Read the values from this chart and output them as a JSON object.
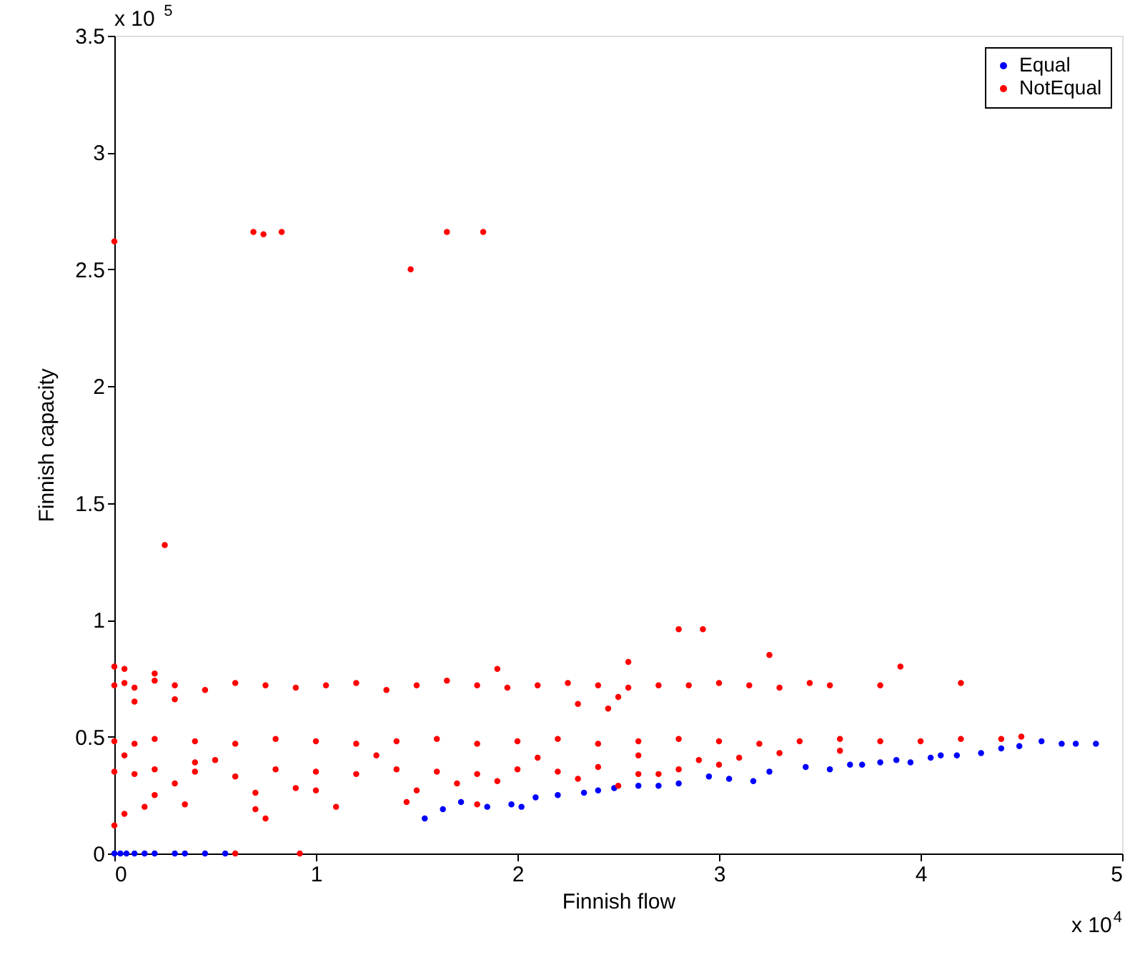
{
  "chart_data": {
    "type": "scatter",
    "xlabel": "Finnish flow",
    "ylabel": "Finnish capacity",
    "xlim": [
      0,
      5
    ],
    "ylim": [
      0,
      3.5
    ],
    "xticks": [
      0,
      1,
      2,
      3,
      4,
      5
    ],
    "yticks": [
      0,
      0.5,
      1,
      1.5,
      2,
      2.5,
      3,
      3.5
    ],
    "grid": false,
    "legend": "top right",
    "marker": "circle",
    "annotations": [
      "x 10$^{5}$",
      "x 10$^{4}$"
    ],
    "series": [
      {
        "name": "Equal",
        "color": "#0000ff",
        "x": [
          0,
          0.03,
          0.06,
          0.1,
          0.15,
          0.2,
          0.3,
          0.35,
          0.45,
          0.55,
          1.54,
          1.63,
          1.72,
          1.85,
          1.97,
          2.02,
          2.09,
          2.2,
          2.33,
          2.4,
          2.48,
          2.6,
          2.7,
          2.8,
          2.95,
          3.05,
          3.17,
          3.25,
          3.43,
          3.55,
          3.65,
          3.71,
          3.8,
          3.88,
          3.95,
          4.05,
          4.1,
          4.18,
          4.3,
          4.4,
          4.49,
          4.6,
          4.7,
          4.77,
          4.87
        ],
        "values": [
          0,
          0,
          0,
          0,
          0,
          0,
          0,
          0,
          0,
          0,
          0.15,
          0.19,
          0.22,
          0.2,
          0.21,
          0.2,
          0.24,
          0.25,
          0.26,
          0.27,
          0.28,
          0.29,
          0.29,
          0.3,
          0.33,
          0.32,
          0.31,
          0.35,
          0.37,
          0.36,
          0.38,
          0.38,
          0.39,
          0.4,
          0.39,
          0.41,
          0.42,
          0.42,
          0.43,
          0.45,
          0.46,
          0.48,
          0.47,
          0.47,
          0.47
        ]
      },
      {
        "name": "NotEqual",
        "color": "#ff0000",
        "x": [
          0,
          0.25,
          0.69,
          0.74,
          0.83,
          1.47,
          1.65,
          1.83,
          2.8,
          2.92,
          3.25,
          3.9,
          4.2,
          0.6,
          0.92,
          0,
          0.05,
          0.15,
          0.35,
          0.7,
          0.75,
          1.1,
          1.45,
          1.8,
          0,
          0.05,
          0.1,
          0.2,
          0.3,
          0.45,
          0.6,
          0.75,
          0.9,
          1.05,
          1.2,
          1.35,
          1.5,
          1.65,
          1.8,
          1.95,
          2.1,
          2.25,
          2.4,
          2.55,
          2.7,
          2.85,
          3.0,
          3.15,
          3.3,
          3.45,
          3.55,
          3.8,
          0,
          0.05,
          0.2,
          1.9,
          2.55,
          0.1,
          0.3,
          2.3,
          2.45,
          2.5,
          0,
          0.1,
          0.2,
          0.4,
          0.6,
          0.8,
          1.0,
          1.2,
          1.4,
          1.6,
          1.8,
          2.0,
          2.2,
          2.4,
          2.6,
          2.8,
          3.0,
          3.2,
          3.4,
          3.6,
          3.8,
          4.0,
          4.2,
          4.4,
          4.5,
          0,
          0.1,
          0.2,
          0.4,
          0.6,
          0.8,
          1.0,
          1.2,
          1.4,
          1.6,
          1.8,
          2.0,
          2.2,
          2.4,
          2.6,
          2.8,
          3.0,
          0.05,
          0.3,
          0.5,
          0.9,
          1.3,
          1.7,
          2.1,
          2.5,
          2.9,
          3.3,
          3.6,
          0.2,
          0.7,
          1.5,
          2.3,
          2.7,
          3.1,
          0.4,
          1.0,
          1.9,
          2.6
        ],
        "values": [
          2.62,
          1.32,
          2.66,
          2.65,
          2.66,
          2.5,
          2.66,
          2.66,
          0.96,
          0.96,
          0.85,
          0.8,
          0.73,
          0,
          0,
          0.12,
          0.17,
          0.2,
          0.21,
          0.19,
          0.15,
          0.2,
          0.22,
          0.21,
          0.72,
          0.73,
          0.71,
          0.74,
          0.72,
          0.7,
          0.73,
          0.72,
          0.71,
          0.72,
          0.73,
          0.7,
          0.72,
          0.74,
          0.72,
          0.71,
          0.72,
          0.73,
          0.72,
          0.71,
          0.72,
          0.72,
          0.73,
          0.72,
          0.71,
          0.73,
          0.72,
          0.72,
          0.8,
          0.79,
          0.77,
          0.79,
          0.82,
          0.65,
          0.66,
          0.64,
          0.62,
          0.67,
          0.48,
          0.47,
          0.49,
          0.48,
          0.47,
          0.49,
          0.48,
          0.47,
          0.48,
          0.49,
          0.47,
          0.48,
          0.49,
          0.47,
          0.48,
          0.49,
          0.48,
          0.47,
          0.48,
          0.49,
          0.48,
          0.48,
          0.49,
          0.49,
          0.5,
          0.35,
          0.34,
          0.36,
          0.35,
          0.33,
          0.36,
          0.35,
          0.34,
          0.36,
          0.35,
          0.34,
          0.36,
          0.35,
          0.37,
          0.34,
          0.36,
          0.38,
          0.42,
          0.3,
          0.4,
          0.28,
          0.42,
          0.3,
          0.41,
          0.29,
          0.4,
          0.43,
          0.44,
          0.25,
          0.26,
          0.27,
          0.32,
          0.34,
          0.41,
          0.39,
          0.27,
          0.31,
          0.42
        ]
      }
    ]
  }
}
